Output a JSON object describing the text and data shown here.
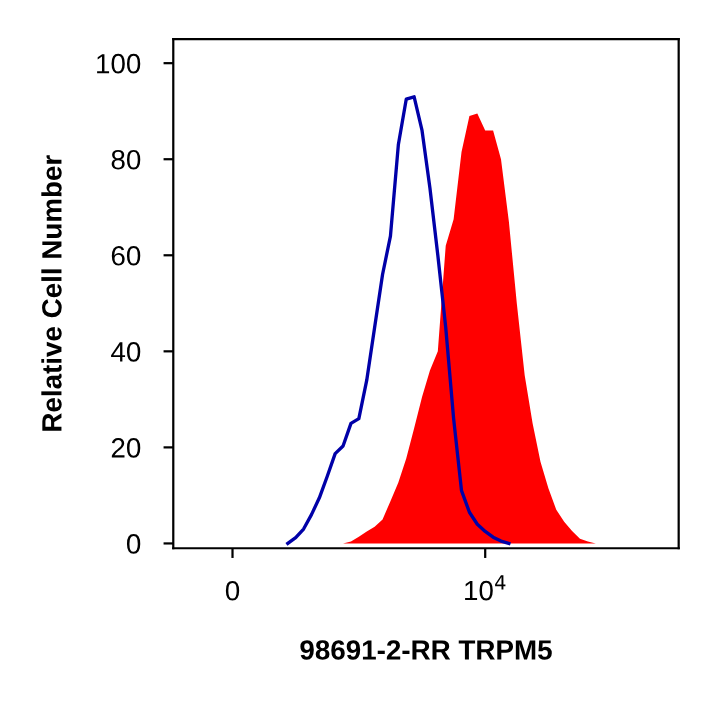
{
  "chart_data": {
    "type": "area",
    "xlabel": "98691-2-RR TRPM5",
    "ylabel": "Relative Cell Number",
    "categories": [
      null,
      null,
      null,
      null,
      null,
      null,
      "0",
      null,
      null,
      null,
      null,
      null,
      null,
      null,
      null,
      null,
      null,
      null,
      null,
      null,
      null,
      null,
      null,
      null,
      null,
      null,
      null,
      null,
      null,
      null,
      null,
      null,
      null,
      null,
      null,
      null,
      null,
      null,
      "10$^{4}$",
      null,
      null,
      null,
      null,
      null,
      null,
      null,
      null,
      null,
      null,
      null,
      null,
      null,
      null,
      null,
      null,
      null,
      null,
      null,
      null,
      null,
      null,
      null,
      null
    ],
    "ylim": [
      -1,
      105
    ],
    "yticks": [
      0,
      20,
      40,
      60,
      80,
      100
    ],
    "grid": false,
    "legend": false,
    "series": [
      {
        "color": "#ff0000",
        "values": [
          null,
          null,
          null,
          null,
          null,
          null,
          null,
          null,
          null,
          null,
          null,
          null,
          null,
          null,
          null,
          null,
          null,
          null,
          null,
          null,
          0,
          0.4,
          1.4,
          2.5,
          3.5,
          5,
          8.8,
          12.7,
          17.7,
          24,
          30.5,
          36,
          40,
          62,
          67.5,
          81.5,
          89,
          89.5,
          86,
          86,
          80,
          67,
          50,
          35,
          25,
          17,
          11.5,
          7,
          4.5,
          2.6,
          1,
          0.4,
          0,
          null,
          null,
          null,
          null,
          null,
          null,
          null,
          null,
          null,
          null
        ]
      },
      {
        "type": "line",
        "color": "#0000a8",
        "values": [
          null,
          null,
          null,
          null,
          null,
          null,
          null,
          null,
          null,
          null,
          null,
          null,
          null,
          0,
          1.2,
          3,
          6,
          9.5,
          14,
          18.7,
          20.3,
          25,
          26,
          34,
          45,
          56,
          64,
          83,
          92.5,
          93,
          86,
          74,
          60,
          45,
          26,
          11,
          6.5,
          4,
          2.5,
          1.3,
          0.5,
          0,
          null,
          null,
          null,
          null,
          null,
          null,
          null,
          null,
          null,
          null,
          null,
          null,
          null,
          null,
          null,
          null,
          null,
          null,
          null,
          null,
          null
        ]
      }
    ]
  }
}
